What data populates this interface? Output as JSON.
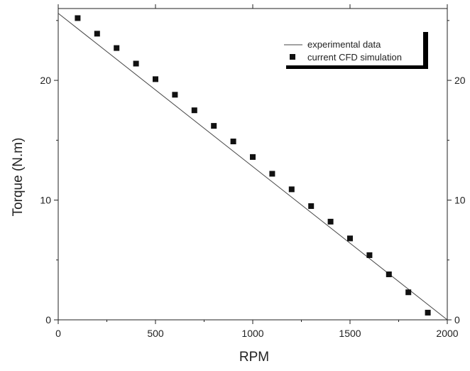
{
  "chart_data": {
    "type": "scatter",
    "xlabel": "RPM",
    "ylabel": "Torque (N.m)",
    "xlim": [
      0,
      2000
    ],
    "ylim": [
      0,
      26
    ],
    "x_ticks": [
      0,
      500,
      1000,
      1500,
      2000
    ],
    "y_ticks": [
      0,
      10,
      20
    ],
    "right_axis_ticks": [
      0,
      10,
      20
    ],
    "grid": false,
    "legend_position": "top-right",
    "series": [
      {
        "name": "experimental data",
        "kind": "line",
        "x": [
          0,
          2000
        ],
        "y": [
          25.6,
          0
        ]
      },
      {
        "name": "current CFD simulation",
        "kind": "markers",
        "marker": "square",
        "x": [
          100,
          200,
          300,
          400,
          500,
          600,
          700,
          800,
          900,
          1000,
          1100,
          1200,
          1300,
          1400,
          1500,
          1600,
          1700,
          1800,
          1900
        ],
        "y": [
          25.2,
          23.9,
          22.7,
          21.4,
          20.1,
          18.8,
          17.5,
          16.2,
          14.9,
          13.6,
          12.2,
          10.9,
          9.5,
          8.2,
          6.8,
          5.4,
          3.8,
          2.3,
          0.6
        ]
      }
    ],
    "colors": {
      "line": "#444444",
      "markers": "#111111",
      "axis": "#222222"
    }
  }
}
